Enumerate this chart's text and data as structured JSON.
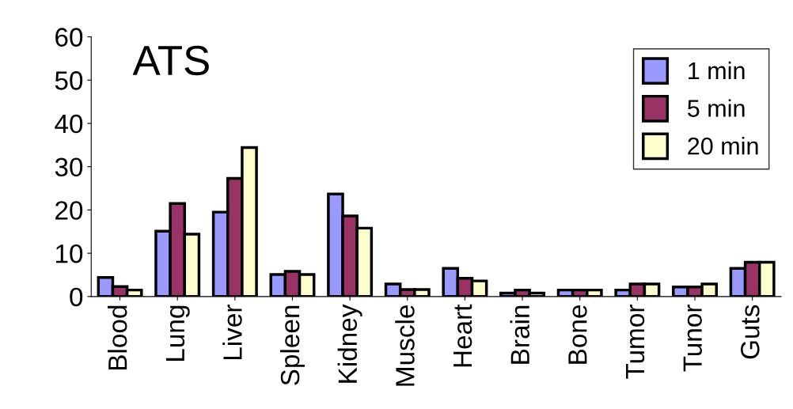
{
  "chart_data": {
    "type": "bar",
    "title": "ATS",
    "categories": [
      "Blood",
      "Lung",
      "Liver",
      "Spleen",
      "Kidney",
      "Muscle",
      "Heart",
      "Brain",
      "Bone",
      "Tumor",
      "Tunor",
      "Guts"
    ],
    "series": [
      {
        "name": "1 min",
        "color": "#9999ff",
        "values": [
          4.4,
          15.1,
          19.5,
          5.1,
          23.7,
          2.9,
          6.5,
          0.8,
          1.5,
          1.5,
          2.2,
          6.5
        ]
      },
      {
        "name": "5 min",
        "color": "#993366",
        "values": [
          2.3,
          21.5,
          27.3,
          5.8,
          18.6,
          1.6,
          4.2,
          1.5,
          1.5,
          2.9,
          2.2,
          7.9
        ]
      },
      {
        "name": "20 min",
        "color": "#ffffcc",
        "values": [
          1.5,
          14.4,
          34.4,
          5.1,
          15.8,
          1.6,
          3.6,
          0.8,
          1.5,
          2.9,
          2.9,
          7.9
        ]
      }
    ],
    "ylim": [
      0,
      60
    ],
    "yticks": [
      0,
      10,
      20,
      30,
      40,
      50,
      60
    ],
    "grid": false,
    "legend": "top right"
  }
}
